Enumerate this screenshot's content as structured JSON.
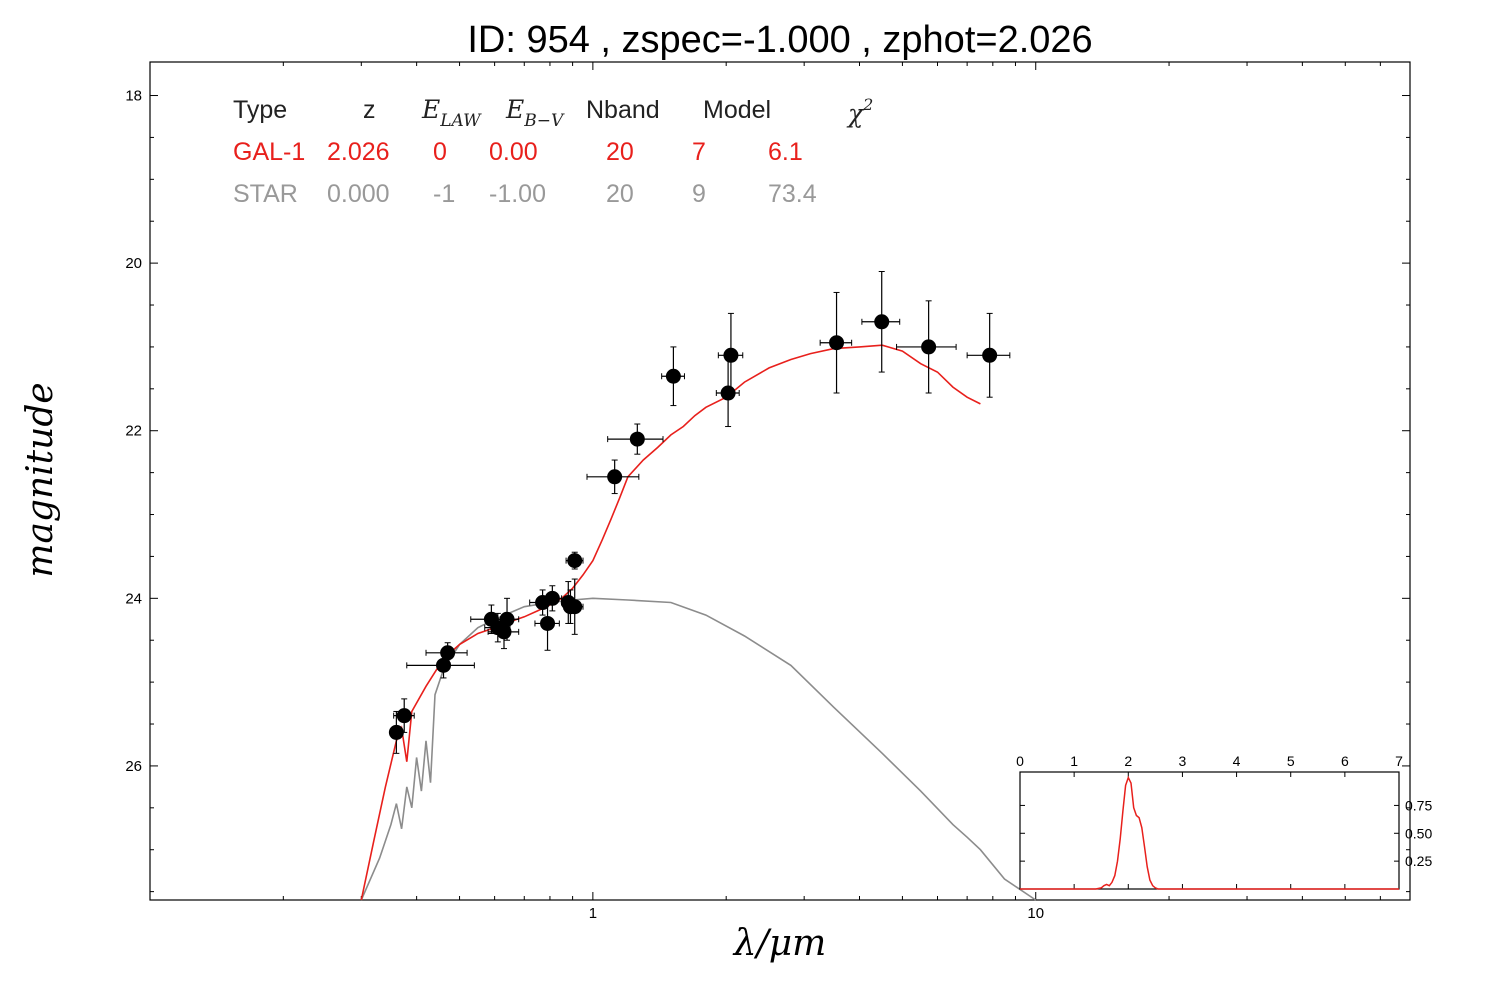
{
  "title": "ID:  954   , zspec=-1.000 , zphot=2.026",
  "colors": {
    "galaxy": "#e8201c",
    "star": "#8c8c8c",
    "points": "#000000"
  },
  "table": {
    "headers": [
      "Type",
      "z",
      "E",
      "E",
      "Nband",
      "Model",
      "χ"
    ],
    "header_subscripts": {
      "elaw": "LAW",
      "ebv": "B−V",
      "chi_sup": "2"
    },
    "rows": [
      {
        "name": "galaxy",
        "color": "#e8201c",
        "cells": [
          "GAL-1",
          "2.026",
          "0",
          "0.00",
          "20",
          "7",
          "6.1"
        ]
      },
      {
        "name": "star",
        "color": "#999999",
        "cells": [
          "STAR",
          "0.000",
          "-1",
          "-1.00",
          "20",
          "9",
          "73.4"
        ]
      }
    ]
  },
  "chart_data": [
    {
      "type": "scatter",
      "title": "ID:  954   , zspec=-1.000 , zphot=2.026",
      "xlabel": "λ/μm",
      "ylabel": "magnitude",
      "x_scale": "log",
      "xlim": [
        0.1,
        70
      ],
      "ylim": [
        27.6,
        17.6
      ],
      "y_inverted": true,
      "xticks": [
        1,
        10
      ],
      "xtick_labels": [
        "1",
        "10"
      ],
      "yticks": [
        18,
        20,
        22,
        24,
        26
      ],
      "ytick_labels": [
        "18",
        "20",
        "22",
        "24",
        "26"
      ],
      "series": [
        {
          "kind": "points",
          "x": [
            0.36,
            0.375,
            0.46,
            0.47,
            0.59,
            0.61,
            0.63,
            0.64,
            0.77,
            0.79,
            0.81,
            0.88,
            0.89,
            0.91,
            0.91,
            1.12,
            1.26,
            1.52,
            2.02,
            2.05,
            3.55,
            4.49,
            5.73,
            7.87
          ],
          "y": [
            25.6,
            25.4,
            24.8,
            24.65,
            24.25,
            24.35,
            24.4,
            24.25,
            24.05,
            24.3,
            24.0,
            24.05,
            24.1,
            23.55,
            24.1,
            22.55,
            22.1,
            21.35,
            21.55,
            21.1,
            20.95,
            20.7,
            21.0,
            21.1
          ],
          "x_err_lo": [
            0.01,
            0.02,
            0.08,
            0.05,
            0.06,
            0.04,
            0.05,
            0.04,
            0.05,
            0.05,
            0.04,
            0.03,
            0.03,
            0.04,
            0.04,
            0.15,
            0.18,
            0.09,
            0.12,
            0.13,
            0.29,
            0.44,
            0.88,
            0.87
          ],
          "x_err_hi": [
            0.01,
            0.02,
            0.08,
            0.05,
            0.06,
            0.04,
            0.05,
            0.04,
            0.05,
            0.05,
            0.04,
            0.03,
            0.03,
            0.04,
            0.04,
            0.15,
            0.18,
            0.09,
            0.12,
            0.13,
            0.29,
            0.44,
            0.88,
            0.87
          ],
          "y_err": [
            0.25,
            0.2,
            0.15,
            0.12,
            0.17,
            0.17,
            0.2,
            0.25,
            0.15,
            0.32,
            0.15,
            0.25,
            0.2,
            0.1,
            0.33,
            0.2,
            0.18,
            0.35,
            0.4,
            0.5,
            0.6,
            0.6,
            0.55,
            0.5
          ]
        },
        {
          "kind": "line",
          "name": "GAL-1",
          "x": [
            0.3,
            0.32,
            0.34,
            0.36,
            0.37,
            0.38,
            0.39,
            0.42,
            0.46,
            0.5,
            0.55,
            0.6,
            0.65,
            0.7,
            0.75,
            0.8,
            0.85,
            0.9,
            0.95,
            1.0,
            1.05,
            1.1,
            1.15,
            1.2,
            1.3,
            1.4,
            1.5,
            1.6,
            1.7,
            1.8,
            2.0,
            2.2,
            2.5,
            2.8,
            3.1,
            3.5,
            4.0,
            4.5,
            5.0,
            5.5,
            6.0,
            6.5,
            7.0,
            7.5
          ],
          "y": [
            27.6,
            26.9,
            26.25,
            25.7,
            25.55,
            25.95,
            25.35,
            25.05,
            24.72,
            24.55,
            24.42,
            24.35,
            24.28,
            24.22,
            24.15,
            24.08,
            24.0,
            23.88,
            23.72,
            23.55,
            23.3,
            23.05,
            22.8,
            22.55,
            22.35,
            22.2,
            22.05,
            21.95,
            21.82,
            21.72,
            21.6,
            21.42,
            21.25,
            21.15,
            21.08,
            21.02,
            21.0,
            20.98,
            21.05,
            21.2,
            21.3,
            21.48,
            21.6,
            21.68
          ]
        },
        {
          "kind": "line",
          "name": "STAR",
          "x": [
            0.3,
            0.33,
            0.35,
            0.36,
            0.37,
            0.38,
            0.39,
            0.4,
            0.41,
            0.42,
            0.43,
            0.44,
            0.46,
            0.5,
            0.55,
            0.6,
            0.7,
            0.8,
            0.9,
            1.0,
            1.2,
            1.5,
            1.8,
            2.2,
            2.8,
            3.5,
            4.5,
            5.5,
            6.5,
            7.0,
            7.5,
            8.5,
            10
          ],
          "y": [
            27.6,
            27.1,
            26.7,
            26.45,
            26.75,
            26.25,
            26.5,
            25.9,
            26.3,
            25.7,
            26.2,
            25.15,
            24.85,
            24.55,
            24.35,
            24.25,
            24.1,
            24.05,
            24.02,
            24.0,
            24.02,
            24.05,
            24.2,
            24.45,
            24.8,
            25.3,
            25.85,
            26.3,
            26.7,
            26.85,
            27.0,
            27.35,
            27.85
          ]
        }
      ]
    },
    {
      "type": "line",
      "name": "inset-pdz",
      "xlim": [
        0,
        7
      ],
      "ylim": [
        0,
        1.05
      ],
      "xticks": [
        0,
        1,
        2,
        3,
        4,
        5,
        6,
        7
      ],
      "xtick_labels": [
        "0",
        "1",
        "2",
        "3",
        "4",
        "5",
        "6",
        "7"
      ],
      "yticks": [
        0.25,
        0.5,
        0.75
      ],
      "ytick_labels": [
        "0.25",
        "0.50",
        "0.75"
      ],
      "series": [
        {
          "name": "PDF(z)",
          "x": [
            0,
            1.4,
            1.5,
            1.55,
            1.6,
            1.65,
            1.7,
            1.75,
            1.8,
            1.85,
            1.9,
            1.95,
            2.0,
            2.05,
            2.1,
            2.15,
            2.2,
            2.25,
            2.3,
            2.35,
            2.4,
            2.45,
            2.5,
            2.55,
            2.6,
            7
          ],
          "y": [
            0,
            0,
            0.01,
            0.03,
            0.04,
            0.03,
            0.06,
            0.12,
            0.25,
            0.45,
            0.7,
            0.93,
            1.0,
            0.95,
            0.73,
            0.66,
            0.64,
            0.55,
            0.38,
            0.2,
            0.08,
            0.03,
            0.01,
            0.0,
            0,
            0
          ]
        }
      ]
    }
  ]
}
